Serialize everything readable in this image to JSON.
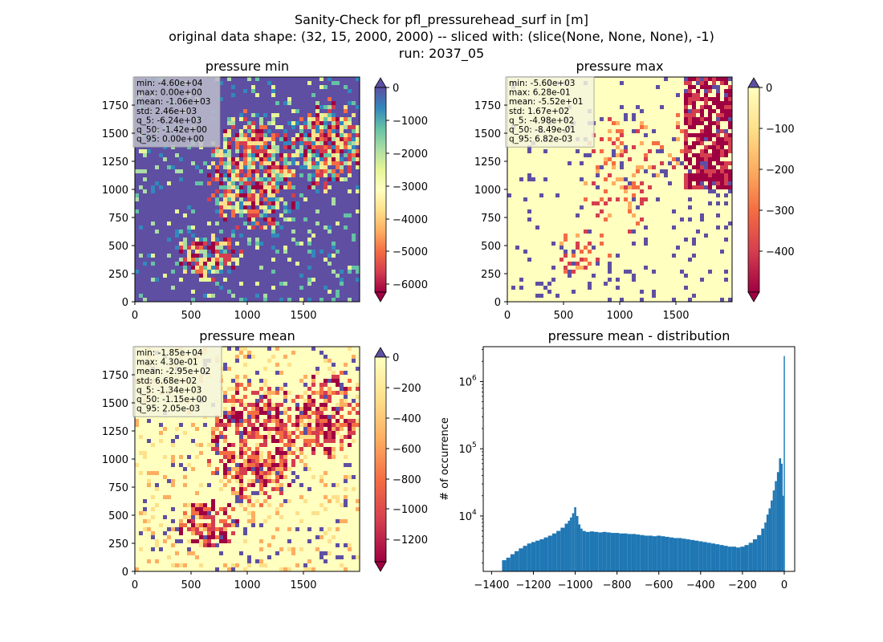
{
  "suptitle": [
    "Sanity-Check for pfl_pressurehead_surf in [m]",
    "original data shape: (32, 15, 2000, 2000) -- sliced with: (slice(None, None, None), -1)",
    "run: 2037_05"
  ],
  "chart_data": [
    {
      "type": "heatmap",
      "title": "pressure min",
      "xlim": [
        0,
        2000
      ],
      "ylim": [
        0,
        2000
      ],
      "xticks": [
        "0",
        "500",
        "1000",
        "1500"
      ],
      "yticks": [
        "0",
        "250",
        "500",
        "750",
        "1000",
        "1250",
        "1500",
        "1750"
      ],
      "colormap": "Spectral",
      "colorbar": {
        "vmin": -6500,
        "vmax": 0,
        "ticks": [
          "0",
          "−1000",
          "−2000",
          "−3000",
          "−4000",
          "−5000",
          "−6000"
        ],
        "extend": "both"
      },
      "stats": [
        "min: -4.60e+04",
        "max: 0.00e+00",
        "mean: -1.06e+03",
        "std: 2.46e+03",
        "q_5: -6.24e+03",
        "q_50: -1.42e+00",
        "q_95: 0.00e+00"
      ]
    },
    {
      "type": "heatmap",
      "title": "pressure max",
      "xlim": [
        0,
        2000
      ],
      "ylim": [
        0,
        2000
      ],
      "xticks": [
        "0",
        "500",
        "1000",
        "1500"
      ],
      "yticks": [
        "0",
        "250",
        "500",
        "750",
        "1000",
        "1250",
        "1500",
        "1750"
      ],
      "colormap": "Spectral",
      "colorbar": {
        "vmin": -500,
        "vmax": 0,
        "ticks": [
          "0",
          "−100",
          "−200",
          "−300",
          "−400"
        ],
        "extend": "both"
      },
      "stats": [
        "min: -5.60e+03",
        "max: 6.28e-01",
        "mean: -5.52e+01",
        "std: 1.67e+02",
        "q_5: -4.98e+02",
        "q_50: -8.49e-01",
        "q_95: 6.82e-03"
      ]
    },
    {
      "type": "heatmap",
      "title": "pressure mean",
      "xlim": [
        0,
        2000
      ],
      "ylim": [
        0,
        2000
      ],
      "xticks": [
        "0",
        "500",
        "1000",
        "1500"
      ],
      "yticks": [
        "0",
        "250",
        "500",
        "750",
        "1000",
        "1250",
        "1500",
        "1750"
      ],
      "colormap": "Spectral",
      "colorbar": {
        "vmin": -1350,
        "vmax": 0,
        "ticks": [
          "0",
          "−200",
          "−400",
          "−600",
          "−800",
          "−1000",
          "−1200"
        ],
        "extend": "both"
      },
      "stats": [
        "min: -1.85e+04",
        "max: 4.30e-01",
        "mean: -2.95e+02",
        "std: 6.68e+02",
        "q_5: -1.34e+03",
        "q_50: -1.15e+00",
        "q_95: 2.05e-03"
      ]
    },
    {
      "type": "bar",
      "title": "pressure mean - distribution",
      "ylabel": "# of occurrence",
      "xlabel": "",
      "xlim": [
        -1440,
        50
      ],
      "xticks": [
        "−1400",
        "−1200",
        "−1000",
        "−800",
        "−600",
        "−400",
        "−200",
        "0"
      ],
      "xtick_values": [
        -1400,
        -1200,
        -1000,
        -800,
        -600,
        -400,
        -200,
        0
      ],
      "yscale": "log",
      "ylim": [
        1500,
        3300000
      ],
      "yticks": [
        "10",
        "10",
        "10"
      ],
      "ytick_exponents": [
        "4",
        "5",
        "6"
      ],
      "ytick_values": [
        10000,
        100000,
        1000000
      ],
      "color": "#1f77b4",
      "x": [
        -1340,
        -1320,
        -1300,
        -1280,
        -1260,
        -1240,
        -1220,
        -1200,
        -1180,
        -1160,
        -1140,
        -1120,
        -1100,
        -1080,
        -1060,
        -1040,
        -1030,
        -1020,
        -1010,
        -1000,
        -990,
        -980,
        -970,
        -960,
        -940,
        -920,
        -900,
        -880,
        -860,
        -840,
        -820,
        -800,
        -780,
        -760,
        -740,
        -720,
        -700,
        -680,
        -660,
        -640,
        -620,
        -600,
        -580,
        -560,
        -540,
        -520,
        -500,
        -480,
        -460,
        -440,
        -420,
        -400,
        -380,
        -360,
        -340,
        -320,
        -300,
        -280,
        -260,
        -240,
        -220,
        -200,
        -180,
        -160,
        -140,
        -120,
        -100,
        -90,
        -80,
        -70,
        -60,
        -50,
        -40,
        -30,
        -20,
        -10,
        -5,
        0
      ],
      "values": [
        2200,
        2400,
        2700,
        3000,
        3300,
        3600,
        3900,
        4100,
        4300,
        4500,
        4800,
        5100,
        5500,
        6000,
        6700,
        7700,
        8500,
        9500,
        11000,
        13500,
        10000,
        7500,
        6500,
        6000,
        5800,
        5900,
        5800,
        5700,
        5800,
        5700,
        5600,
        5600,
        5500,
        5500,
        5400,
        5400,
        5300,
        5200,
        5100,
        5100,
        5000,
        5100,
        5000,
        4900,
        4800,
        4700,
        4700,
        4600,
        4500,
        4400,
        4300,
        4200,
        4100,
        4000,
        3900,
        3800,
        3700,
        3600,
        3500,
        3500,
        3400,
        3500,
        3700,
        4000,
        4500,
        5200,
        6500,
        8000,
        10500,
        13000,
        17000,
        24000,
        33000,
        45000,
        72000,
        60000,
        20000,
        2400000
      ]
    }
  ]
}
